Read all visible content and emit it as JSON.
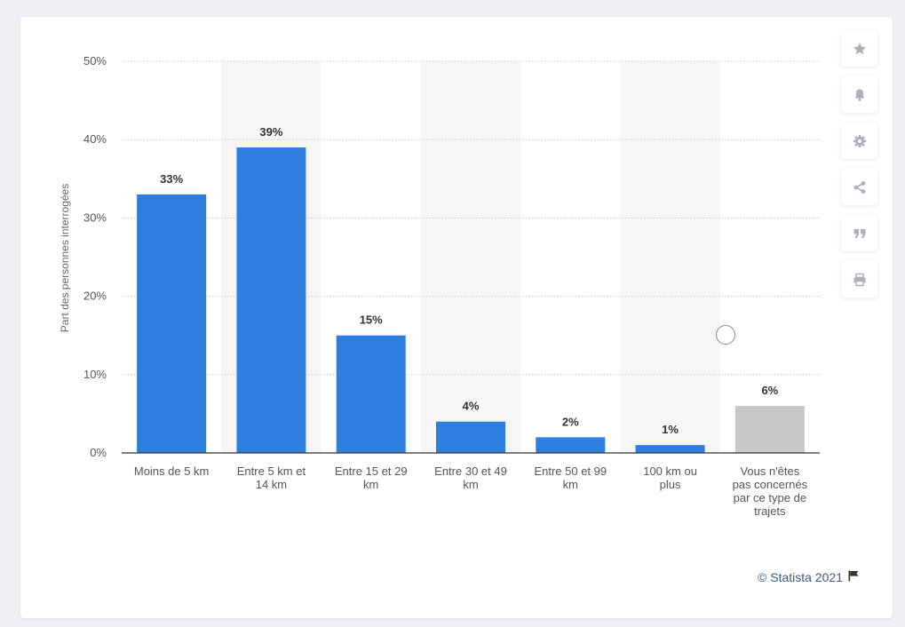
{
  "toolbar": {
    "buttons": [
      {
        "name": "favorite-button",
        "icon": "star-icon"
      },
      {
        "name": "notification-button",
        "icon": "bell-icon"
      },
      {
        "name": "settings-button",
        "icon": "gear-icon"
      },
      {
        "name": "share-button",
        "icon": "share-icon"
      },
      {
        "name": "cite-button",
        "icon": "quote-icon"
      },
      {
        "name": "print-button",
        "icon": "printer-icon"
      }
    ]
  },
  "footer": {
    "credit": "© Statista 2021",
    "credit_icon": "flag-icon"
  },
  "colors": {
    "bar": "#2e7ee0",
    "bar_other": "#c8c8c8",
    "band": "#f6f6f6",
    "grid": "#c9c9c9",
    "axis_text": "#555555",
    "label_text": "#333333"
  },
  "chart_data": {
    "type": "bar",
    "categories": [
      "Moins de 5 km",
      "Entre 5 km et 14 km",
      "Entre 15 et 29 km",
      "Entre 30 et 49 km",
      "Entre 50 et 99 km",
      "100 km ou plus",
      "Vous n'êtes pas concernés par ce type de trajets"
    ],
    "category_lines": [
      [
        "Moins de 5 km"
      ],
      [
        "Entre 5 km et",
        "14 km"
      ],
      [
        "Entre 15 et 29",
        "km"
      ],
      [
        "Entre 30 et 49",
        "km"
      ],
      [
        "Entre 50 et 99",
        "km"
      ],
      [
        "100 km ou",
        "plus"
      ],
      [
        "Vous n'êtes",
        "pas concernés",
        "par ce type de",
        "trajets"
      ]
    ],
    "values": [
      33,
      39,
      15,
      4,
      2,
      1,
      6
    ],
    "data_labels": [
      "33%",
      "39%",
      "15%",
      "4%",
      "2%",
      "1%",
      "6%"
    ],
    "highlight_gray_index": 6,
    "ylabel": "Part des personnes interrogées",
    "xlabel": "",
    "ylim": [
      0,
      50
    ],
    "y_ticks": [
      0,
      10,
      20,
      30,
      40,
      50
    ],
    "y_tick_labels": [
      "0%",
      "10%",
      "20%",
      "30%",
      "40%",
      "50%"
    ],
    "grid": true,
    "alternating_bands": true
  }
}
